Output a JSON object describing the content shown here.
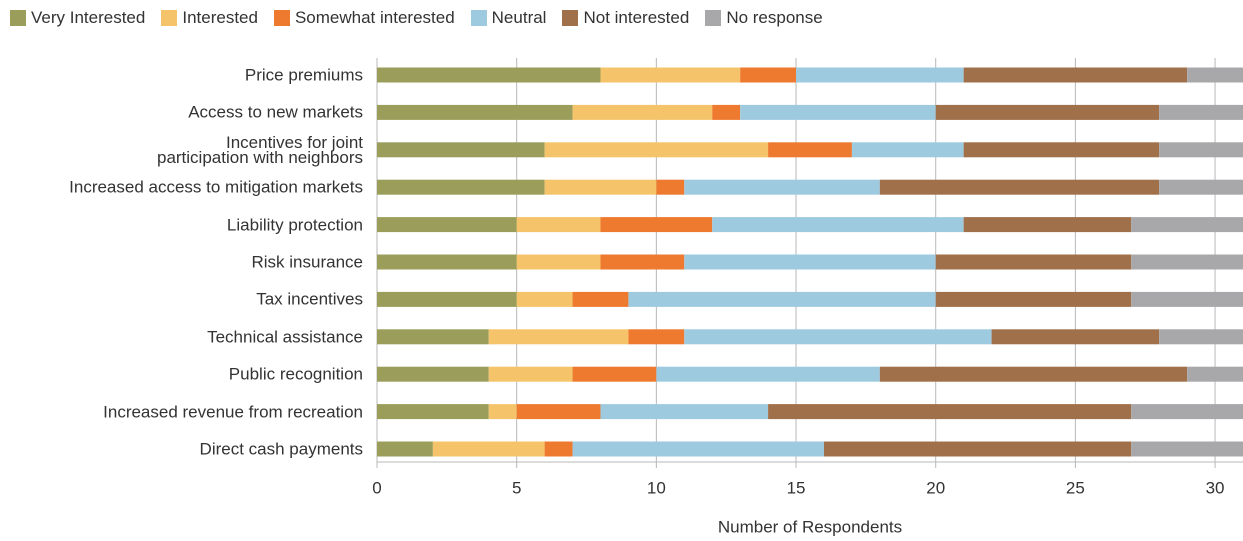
{
  "chart_data": {
    "type": "stacked-bar-horizontal",
    "xlabel": "Number of Respondents",
    "categories": [
      "Price premiums",
      "Access to new markets",
      "Incentives for joint\nparticipation with neighbors",
      "Increased access to mitigation markets",
      "Liability protection",
      "Risk insurance",
      "Tax incentives",
      "Technical assistance",
      "Public recognition",
      "Increased revenue from recreation",
      "Direct cash payments"
    ],
    "series": [
      {
        "name": "Very Interested",
        "color": "#9a9e5a",
        "values": [
          8,
          7,
          6,
          6,
          5,
          5,
          5,
          4,
          4,
          4,
          2
        ]
      },
      {
        "name": "Interested",
        "color": "#f5c46a",
        "values": [
          5,
          5,
          8,
          4,
          3,
          3,
          2,
          5,
          3,
          1,
          4
        ]
      },
      {
        "name": "Somewhat interested",
        "color": "#ee7a30",
        "values": [
          2,
          1,
          3,
          1,
          4,
          3,
          2,
          2,
          3,
          3,
          1
        ]
      },
      {
        "name": "Neutral",
        "color": "#9ecae0",
        "values": [
          6,
          7,
          4,
          7,
          9,
          9,
          11,
          11,
          8,
          6,
          9
        ]
      },
      {
        "name": "Not interested",
        "color": "#a0704a",
        "values": [
          8,
          8,
          7,
          10,
          6,
          7,
          7,
          6,
          11,
          13,
          11
        ]
      },
      {
        "name": "No response",
        "color": "#a8a8ab",
        "values": [
          2,
          3,
          3,
          3,
          4,
          4,
          4,
          3,
          2,
          4,
          4
        ]
      }
    ],
    "xlim": [
      0,
      31
    ],
    "xticks": [
      0,
      5,
      10,
      15,
      20,
      25,
      30
    ],
    "grid": true,
    "legend": "top"
  }
}
